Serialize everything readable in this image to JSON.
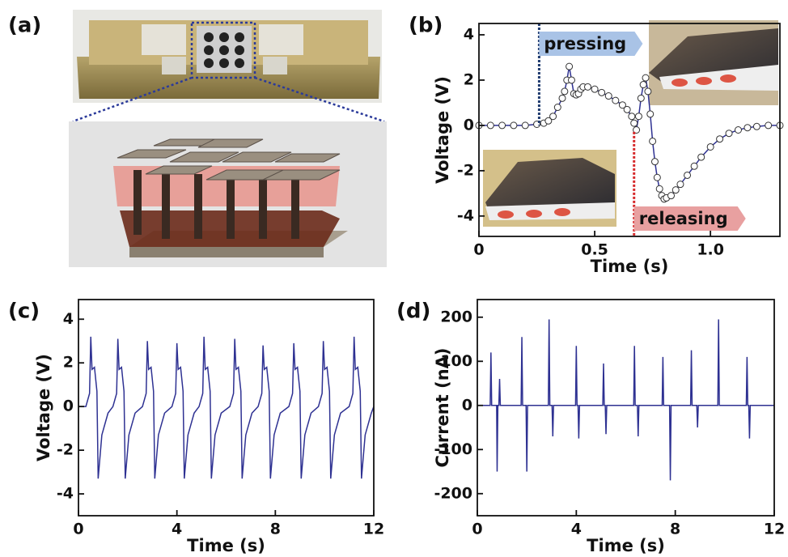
{
  "panels": [
    {
      "label": "(a)"
    }
  ],
  "chart_data": [
    {
      "type": "line",
      "panel_label": "(b)",
      "xlabel": "Time (s)",
      "ylabel": "Voltage (V)",
      "color": "#2e3192",
      "marker": "circle",
      "xlim": [
        0,
        1.3
      ],
      "xticks": [
        0,
        0.5,
        {
          "value": 1,
          "label": "1.0"
        }
      ],
      "ylim": [
        -4.9,
        4.5
      ],
      "yticks": [
        -4,
        -2,
        0,
        2,
        4
      ],
      "annotations": [
        {
          "text": "pressing",
          "x": 0.26
        },
        {
          "text": "releasing",
          "x": 0.67
        }
      ],
      "x": [
        0,
        0.05,
        0.1,
        0.15,
        0.2,
        0.25,
        0.28,
        0.3,
        0.32,
        0.34,
        0.36,
        0.37,
        0.38,
        0.39,
        0.4,
        0.41,
        0.42,
        0.43,
        0.44,
        0.45,
        0.47,
        0.5,
        0.53,
        0.56,
        0.59,
        0.62,
        0.64,
        0.66,
        0.67,
        0.68,
        0.69,
        0.7,
        0.71,
        0.72,
        0.73,
        0.74,
        0.75,
        0.76,
        0.77,
        0.78,
        0.79,
        0.8,
        0.81,
        0.83,
        0.85,
        0.87,
        0.9,
        0.93,
        0.96,
        1.0,
        1.04,
        1.08,
        1.12,
        1.16,
        1.2,
        1.25,
        1.3
      ],
      "values": [
        0,
        0,
        0,
        0,
        0,
        0.05,
        0.1,
        0.2,
        0.4,
        0.8,
        1.2,
        1.5,
        2.0,
        2.6,
        2.0,
        1.4,
        1.35,
        1.4,
        1.6,
        1.7,
        1.7,
        1.6,
        1.45,
        1.3,
        1.1,
        0.9,
        0.7,
        0.4,
        0.1,
        -0.2,
        0.4,
        1.2,
        1.8,
        2.1,
        1.5,
        0.5,
        -0.7,
        -1.6,
        -2.3,
        -2.8,
        -3.1,
        -3.25,
        -3.2,
        -3.1,
        -2.85,
        -2.6,
        -2.2,
        -1.8,
        -1.4,
        -0.95,
        -0.6,
        -0.35,
        -0.2,
        -0.1,
        -0.05,
        0,
        0
      ]
    },
    {
      "type": "line",
      "panel_label": "(c)",
      "xlabel": "Time (s)",
      "ylabel": "Voltage (V)",
      "color": "#2e3192",
      "xlim": [
        0,
        12
      ],
      "xticks": [
        0,
        4,
        8,
        12
      ],
      "ylim": [
        -5,
        4.9
      ],
      "yticks": [
        -4,
        -2,
        0,
        2,
        4
      ],
      "x": [
        0,
        0.3,
        0.45,
        0.5,
        0.55,
        0.65,
        0.75,
        0.8,
        0.95,
        1.2,
        1.4,
        1.55,
        1.6,
        1.65,
        1.75,
        1.85,
        1.9,
        2.05,
        2.3,
        2.6,
        2.75,
        2.8,
        2.85,
        2.95,
        3.05,
        3.1,
        3.25,
        3.5,
        3.8,
        3.95,
        4.0,
        4.05,
        4.15,
        4.25,
        4.3,
        4.45,
        4.7,
        4.9,
        5.05,
        5.1,
        5.15,
        5.25,
        5.35,
        5.4,
        5.55,
        5.8,
        6.15,
        6.3,
        6.35,
        6.4,
        6.5,
        6.6,
        6.65,
        6.8,
        7.05,
        7.3,
        7.45,
        7.5,
        7.55,
        7.65,
        7.75,
        7.8,
        7.95,
        8.2,
        8.55,
        8.7,
        8.75,
        8.8,
        8.9,
        9.0,
        9.05,
        9.2,
        9.45,
        9.75,
        9.9,
        9.95,
        10.0,
        10.1,
        10.2,
        10.25,
        10.4,
        10.65,
        11.0,
        11.15,
        11.2,
        11.25,
        11.35,
        11.45,
        11.5,
        11.65,
        11.9,
        12
      ],
      "values": [
        0,
        0,
        0.6,
        3.2,
        1.7,
        1.8,
        0.7,
        -3.3,
        -1.3,
        -0.3,
        0,
        0.6,
        3.1,
        1.7,
        1.8,
        0.7,
        -3.3,
        -1.3,
        -0.3,
        0,
        0.6,
        3.0,
        1.7,
        1.8,
        0.7,
        -3.3,
        -1.3,
        -0.3,
        0,
        0.6,
        2.9,
        1.7,
        1.8,
        0.7,
        -3.3,
        -1.3,
        -0.3,
        0,
        0.6,
        3.2,
        1.7,
        1.8,
        0.7,
        -3.3,
        -1.3,
        -0.3,
        0,
        0.6,
        3.1,
        1.7,
        1.8,
        0.7,
        -3.3,
        -1.3,
        -0.3,
        0,
        0.6,
        2.8,
        1.7,
        1.8,
        0.7,
        -3.3,
        -1.3,
        -0.3,
        0,
        0.6,
        2.9,
        1.7,
        1.8,
        0.7,
        -3.3,
        -1.3,
        -0.3,
        0,
        0.6,
        3.0,
        1.7,
        1.8,
        0.7,
        -3.3,
        -1.3,
        -0.3,
        0,
        0.6,
        3.2,
        1.7,
        1.8,
        0.7,
        -3.3,
        -1.3,
        -0.3,
        0
      ]
    },
    {
      "type": "line",
      "panel_label": "(d)",
      "xlabel": "Time (s)",
      "ylabel": "Current (nA)",
      "color": "#2e3192",
      "xlim": [
        0,
        12
      ],
      "xticks": [
        0,
        4,
        8,
        12
      ],
      "ylim": [
        -250,
        240
      ],
      "yticks": [
        -200,
        -100,
        0,
        100,
        200
      ],
      "x": [
        0,
        0.52,
        0.55,
        0.58,
        0.78,
        0.8,
        0.83,
        0.87,
        0.9,
        0.93,
        1.77,
        1.8,
        1.83,
        1.97,
        2.0,
        2.03,
        2.87,
        2.9,
        2.93,
        3.02,
        3.05,
        3.08,
        3.97,
        4.0,
        4.03,
        4.07,
        4.1,
        4.13,
        5.07,
        5.1,
        5.13,
        5.17,
        5.2,
        5.23,
        6.32,
        6.35,
        6.38,
        6.47,
        6.5,
        6.53,
        7.47,
        7.5,
        7.53,
        7.77,
        7.8,
        7.83,
        8.62,
        8.65,
        8.68,
        8.87,
        8.9,
        8.93,
        9.72,
        9.75,
        9.78,
        10.87,
        10.9,
        10.93,
        10.97,
        11.0,
        11.03,
        12
      ],
      "values": [
        0,
        0,
        120,
        0,
        0,
        -150,
        0,
        0,
        60,
        0,
        0,
        155,
        0,
        0,
        -150,
        0,
        0,
        195,
        0,
        0,
        -70,
        0,
        0,
        135,
        0,
        0,
        -75,
        0,
        0,
        95,
        0,
        0,
        -65,
        0,
        0,
        135,
        0,
        0,
        -70,
        0,
        0,
        110,
        0,
        0,
        -170,
        0,
        0,
        125,
        0,
        0,
        -50,
        0,
        0,
        195,
        0,
        0,
        110,
        0,
        0,
        -75,
        0,
        0
      ]
    }
  ]
}
